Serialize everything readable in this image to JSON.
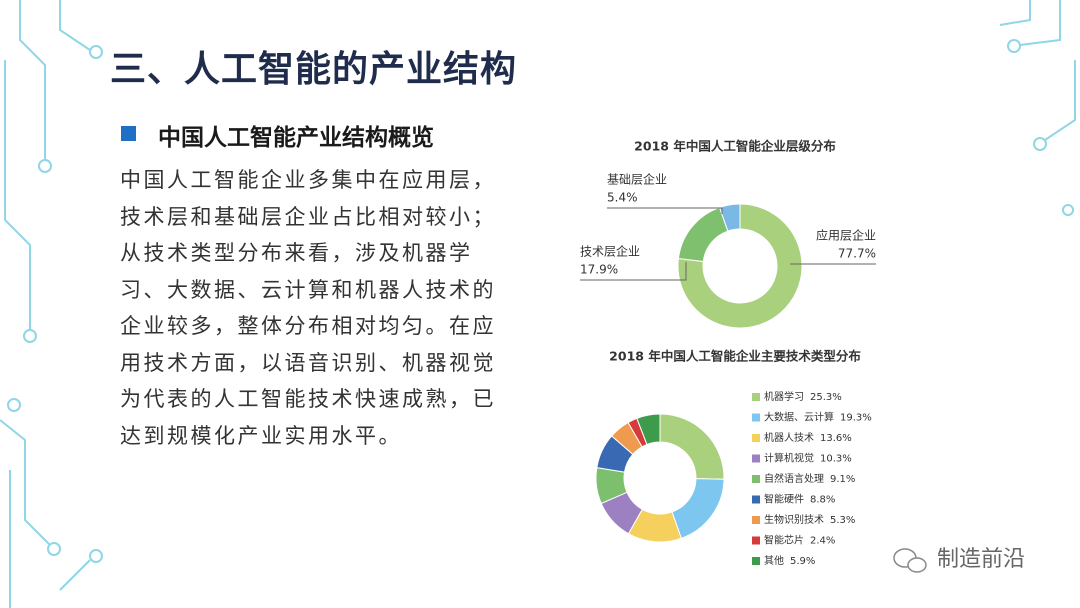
{
  "slide": {
    "title": "三、人工智能的产业结构",
    "subtitle": "中国人工智能产业结构概览",
    "body": "中国人工智能企业多集中在应用层，技术层和基础层企业占比相对较小；从技术类型分布来看，涉及机器学习、大数据、云计算和机器人技术的企业较多，整体分布相对均匀。在应用技术方面，以语音识别、机器视觉为代表的人工智能技术快速成熟，已达到规模化产业实用水平。",
    "watermark": "制造前沿"
  },
  "chart_data": [
    {
      "type": "pie",
      "title": "2018 年中国人工智能企业层级分布",
      "categories": [
        "应用层企业",
        "技术层企业",
        "基础层企业"
      ],
      "values": [
        77.7,
        17.9,
        5.4
      ],
      "value_labels": [
        "77.7%",
        "17.9%",
        "5.4%"
      ],
      "colors": [
        "#a9d07c",
        "#7fc06e",
        "#7ab8e6"
      ]
    },
    {
      "type": "pie",
      "title": "2018 年中国人工智能企业主要技术类型分布",
      "categories": [
        "机器学习",
        "大数据、云计算",
        "机器人技术",
        "计算机视觉",
        "自然语言处理",
        "智能硬件",
        "生物识别技术",
        "智能芯片",
        "其他"
      ],
      "values": [
        25.3,
        19.3,
        13.6,
        10.3,
        9.1,
        8.8,
        5.3,
        2.4,
        5.9
      ],
      "value_labels": [
        "25.3%",
        "19.3%",
        "13.6%",
        "10.3%",
        "9.1%",
        "8.8%",
        "5.3%",
        "2.4%",
        "5.9%"
      ],
      "colors": [
        "#a9d07c",
        "#7cc6ef",
        "#f5d05c",
        "#9c80c2",
        "#7cc06e",
        "#3a69b4",
        "#f09a50",
        "#d63b3b",
        "#3d9b4c"
      ]
    }
  ]
}
